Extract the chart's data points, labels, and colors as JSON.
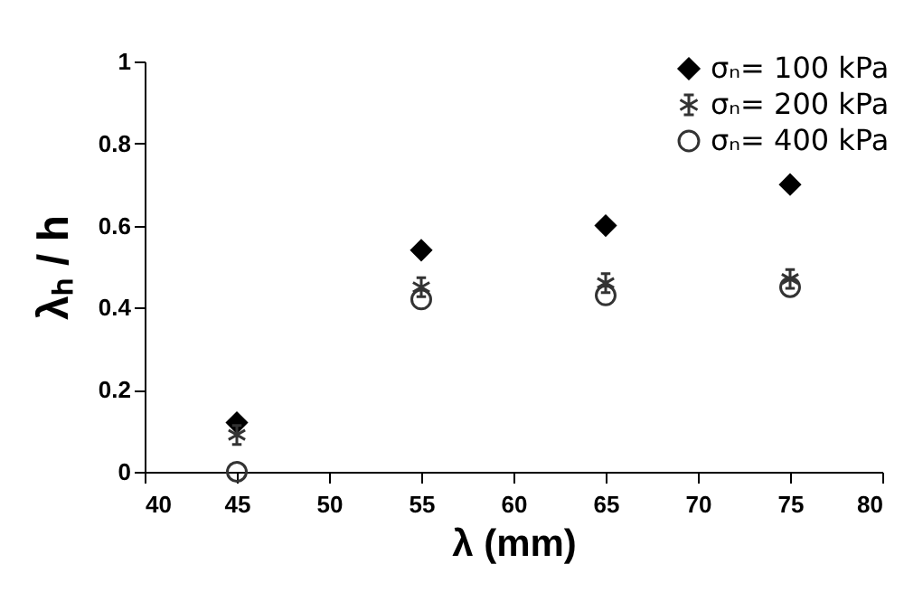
{
  "chart_data": {
    "type": "scatter",
    "xlabel": "λ (mm)",
    "ylabel": "λₕ / h",
    "x": [
      45,
      55,
      65,
      75
    ],
    "series": [
      {
        "name": "σₙ= 100 kPa",
        "color": "#000000",
        "marker": "diamond",
        "values": [
          0.12,
          0.54,
          0.6,
          0.7
        ]
      },
      {
        "name": "σₙ= 200 kPa",
        "color": "#333333",
        "marker": "cross",
        "values": [
          0.09,
          0.45,
          0.46,
          0.47
        ]
      },
      {
        "name": "σₙ= 400 kPa",
        "color": "#333333",
        "marker": "circle",
        "values": [
          0.0,
          0.42,
          0.43,
          0.45
        ]
      }
    ],
    "xlim": [
      40,
      80
    ],
    "xticks": [
      40,
      45,
      50,
      55,
      60,
      65,
      70,
      75,
      80
    ],
    "ylim": [
      0,
      1
    ],
    "yticks": [
      0,
      0.2,
      0.4,
      0.6,
      0.8,
      1
    ],
    "grid": false,
    "legend": "top right"
  }
}
